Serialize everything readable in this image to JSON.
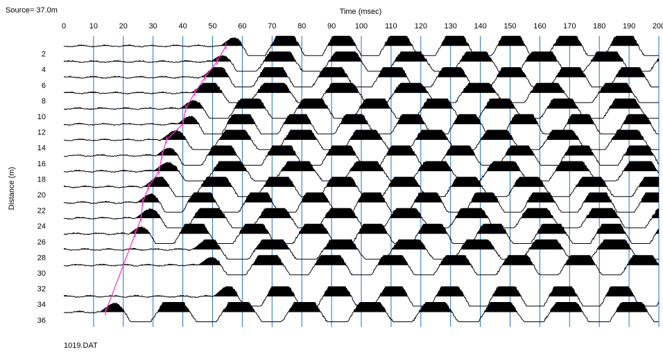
{
  "header": {
    "source_label": "Source= 37.0m",
    "x_axis_title": "Time (msec)",
    "y_axis_title": "Distance (m)",
    "file_name": "1019.DAT"
  },
  "colors": {
    "grid_line": "#1f6fbf",
    "trace": "#000000",
    "first_break_line": "#ff33cc",
    "background": "#ffffff"
  },
  "chart_data": {
    "type": "seismic-wiggle",
    "title": "",
    "xlabel": "Time (msec)",
    "ylabel": "Distance (m)",
    "xlim": [
      0,
      200
    ],
    "ylim": [
      37,
      0
    ],
    "x_ticks": [
      0,
      10,
      20,
      30,
      40,
      50,
      60,
      70,
      80,
      90,
      100,
      110,
      120,
      130,
      140,
      150,
      160,
      170,
      180,
      190,
      200
    ],
    "y_ticks": [
      2,
      4,
      6,
      8,
      10,
      12,
      14,
      16,
      18,
      20,
      22,
      24,
      26,
      28,
      30,
      32,
      34,
      36
    ],
    "grid": "vertical",
    "trace_offsets": [
      1,
      3,
      5,
      7,
      9,
      11,
      13,
      15,
      17,
      19,
      21,
      23,
      25,
      27,
      29,
      33,
      35
    ],
    "first_break_picks": [
      {
        "distance": 1,
        "time": 54.5
      },
      {
        "distance": 3,
        "time": 51.5
      },
      {
        "distance": 5,
        "time": 47.5
      },
      {
        "distance": 7,
        "time": 44
      },
      {
        "distance": 9,
        "time": 41
      },
      {
        "distance": 11,
        "time": 40
      },
      {
        "distance": 13,
        "time": 34.5
      },
      {
        "distance": 15,
        "time": 33
      },
      {
        "distance": 17,
        "time": 32
      },
      {
        "distance": 19,
        "time": 28.5
      },
      {
        "distance": 21,
        "time": 26.5
      },
      {
        "distance": 23,
        "time": 26
      },
      {
        "distance": 25,
        "time": 24
      },
      {
        "distance": 35,
        "time": 14
      }
    ]
  }
}
